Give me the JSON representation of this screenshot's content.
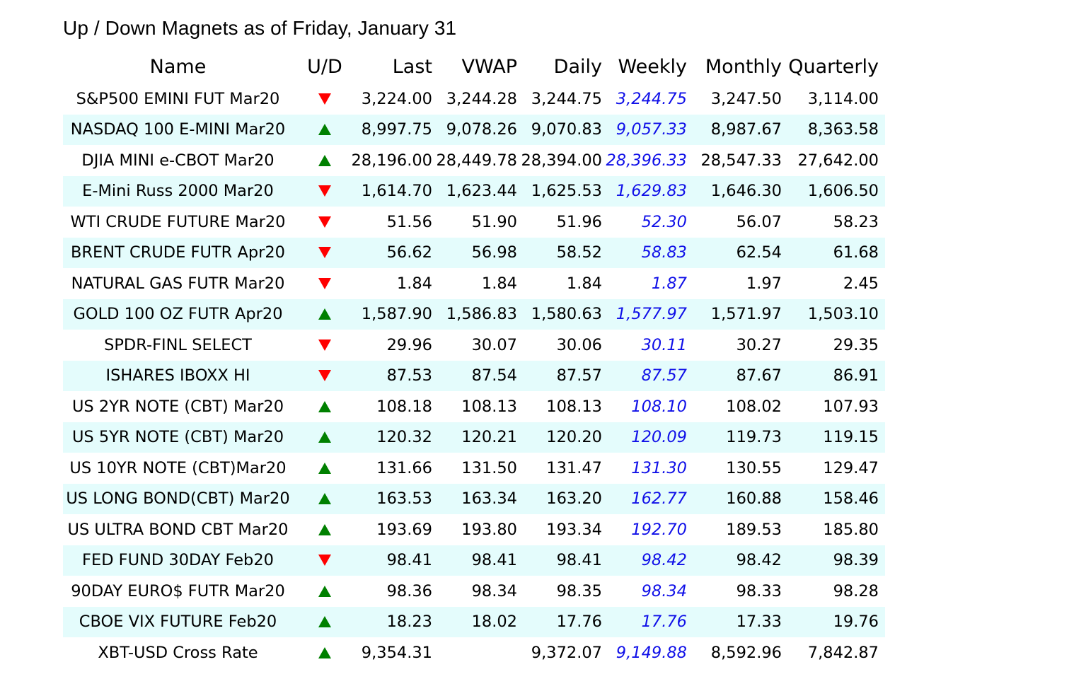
{
  "title": "Up / Down Magnets as of Friday, January 31",
  "colors": {
    "up": "#008000",
    "down": "#ff0000",
    "weekly": "#1010e8",
    "row_alt": "#e4fcfc"
  },
  "headers": {
    "name": "Name",
    "ud": "U/D",
    "last": "Last",
    "vwap": "VWAP",
    "daily": "Daily",
    "weekly": "Weekly",
    "monthly": "Monthly",
    "quarterly": "Quarterly"
  },
  "rows": [
    {
      "name": "S&P500 EMINI FUT Mar20",
      "ud": "down",
      "last": "3,224.00",
      "vwap": "3,244.28",
      "daily": "3,244.75",
      "weekly": "3,244.75",
      "monthly": "3,247.50",
      "quarterly": "3,114.00"
    },
    {
      "name": "NASDAQ 100 E-MINI Mar20",
      "ud": "up",
      "last": "8,997.75",
      "vwap": "9,078.26",
      "daily": "9,070.83",
      "weekly": "9,057.33",
      "monthly": "8,987.67",
      "quarterly": "8,363.58"
    },
    {
      "name": "DJIA MINI e-CBOT Mar20",
      "ud": "up",
      "last": "28,196.00",
      "vwap": "28,449.78",
      "daily": "28,394.00",
      "weekly": "28,396.33",
      "monthly": "28,547.33",
      "quarterly": "27,642.00"
    },
    {
      "name": "E-Mini Russ 2000 Mar20",
      "ud": "down",
      "last": "1,614.70",
      "vwap": "1,623.44",
      "daily": "1,625.53",
      "weekly": "1,629.83",
      "monthly": "1,646.30",
      "quarterly": "1,606.50"
    },
    {
      "name": "WTI CRUDE FUTURE Mar20",
      "ud": "down",
      "last": "51.56",
      "vwap": "51.90",
      "daily": "51.96",
      "weekly": "52.30",
      "monthly": "56.07",
      "quarterly": "58.23"
    },
    {
      "name": "BRENT CRUDE FUTR Apr20",
      "ud": "down",
      "last": "56.62",
      "vwap": "56.98",
      "daily": "58.52",
      "weekly": "58.83",
      "monthly": "62.54",
      "quarterly": "61.68"
    },
    {
      "name": "NATURAL GAS FUTR Mar20",
      "ud": "down",
      "last": "1.84",
      "vwap": "1.84",
      "daily": "1.84",
      "weekly": "1.87",
      "monthly": "1.97",
      "quarterly": "2.45"
    },
    {
      "name": "GOLD 100 OZ FUTR Apr20",
      "ud": "up",
      "last": "1,587.90",
      "vwap": "1,586.83",
      "daily": "1,580.63",
      "weekly": "1,577.97",
      "monthly": "1,571.97",
      "quarterly": "1,503.10"
    },
    {
      "name": "SPDR-FINL SELECT",
      "ud": "down",
      "last": "29.96",
      "vwap": "30.07",
      "daily": "30.06",
      "weekly": "30.11",
      "monthly": "30.27",
      "quarterly": "29.35"
    },
    {
      "name": "ISHARES IBOXX HI",
      "ud": "down",
      "last": "87.53",
      "vwap": "87.54",
      "daily": "87.57",
      "weekly": "87.57",
      "monthly": "87.67",
      "quarterly": "86.91"
    },
    {
      "name": "US 2YR NOTE (CBT) Mar20",
      "ud": "up",
      "last": "108.18",
      "vwap": "108.13",
      "daily": "108.13",
      "weekly": "108.10",
      "monthly": "108.02",
      "quarterly": "107.93"
    },
    {
      "name": "US 5YR NOTE (CBT) Mar20",
      "ud": "up",
      "last": "120.32",
      "vwap": "120.21",
      "daily": "120.20",
      "weekly": "120.09",
      "monthly": "119.73",
      "quarterly": "119.15"
    },
    {
      "name": "US 10YR NOTE (CBT)Mar20",
      "ud": "up",
      "last": "131.66",
      "vwap": "131.50",
      "daily": "131.47",
      "weekly": "131.30",
      "monthly": "130.55",
      "quarterly": "129.47"
    },
    {
      "name": "US LONG BOND(CBT) Mar20",
      "ud": "up",
      "last": "163.53",
      "vwap": "163.34",
      "daily": "163.20",
      "weekly": "162.77",
      "monthly": "160.88",
      "quarterly": "158.46"
    },
    {
      "name": "US ULTRA BOND CBT Mar20",
      "ud": "up",
      "last": "193.69",
      "vwap": "193.80",
      "daily": "193.34",
      "weekly": "192.70",
      "monthly": "189.53",
      "quarterly": "185.80"
    },
    {
      "name": "FED FUND 30DAY Feb20",
      "ud": "down",
      "last": "98.41",
      "vwap": "98.41",
      "daily": "98.41",
      "weekly": "98.42",
      "monthly": "98.42",
      "quarterly": "98.39"
    },
    {
      "name": "90DAY EURO$ FUTR Mar20",
      "ud": "up",
      "last": "98.36",
      "vwap": "98.34",
      "daily": "98.35",
      "weekly": "98.34",
      "monthly": "98.33",
      "quarterly": "98.28"
    },
    {
      "name": "CBOE VIX FUTURE Feb20",
      "ud": "up",
      "last": "18.23",
      "vwap": "18.02",
      "daily": "17.76",
      "weekly": "17.76",
      "monthly": "17.33",
      "quarterly": "19.76"
    },
    {
      "name": "XBT-USD Cross Rate",
      "ud": "up",
      "last": "9,354.31",
      "vwap": "",
      "daily": "9,372.07",
      "weekly": "9,149.88",
      "monthly": "8,592.96",
      "quarterly": "7,842.87"
    }
  ]
}
